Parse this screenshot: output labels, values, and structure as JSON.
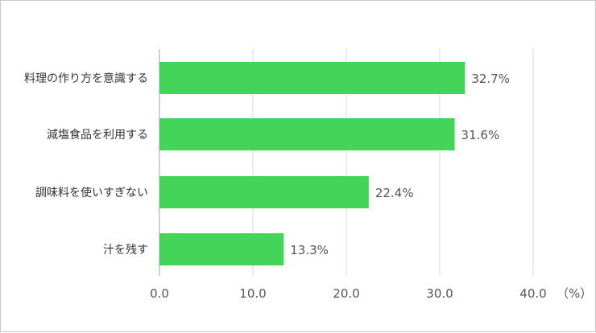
{
  "chart_data": {
    "type": "bar",
    "orientation": "horizontal",
    "categories": [
      "料理の作り方を意識する",
      "減塩食品を利用する",
      "調味料を使いすぎない",
      "汁を残す"
    ],
    "values": [
      32.7,
      31.6,
      22.4,
      13.3
    ],
    "value_labels": [
      "32.7%",
      "31.6%",
      "22.4%",
      "13.3%"
    ],
    "x_ticks": [
      "0.0",
      "10.0",
      "20.0",
      "30.0",
      "40.0"
    ],
    "xlim": [
      0,
      40
    ],
    "unit": "（%）",
    "grid": true,
    "bar_color": "#44d45a",
    "grid_color": "#d9d9d9",
    "axis_color": "#a0a0a0"
  }
}
